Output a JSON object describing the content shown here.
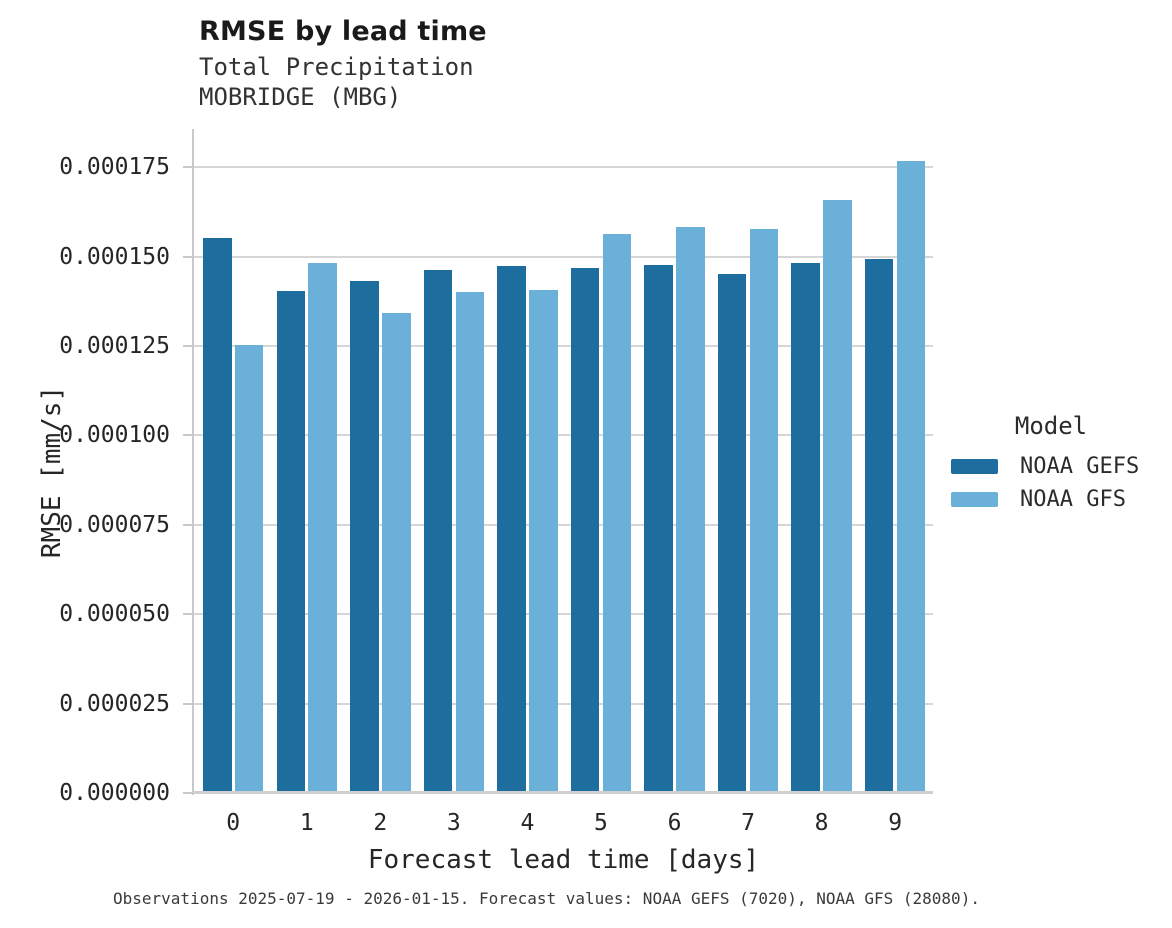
{
  "header": {
    "title": "RMSE by lead time",
    "subtitle_line1": "Total Precipitation",
    "subtitle_line2": "MOBRIDGE (MBG)"
  },
  "footer": {
    "caption": "Observations 2025-07-19 - 2026-01-15. Forecast values: NOAA GEFS (7020), NOAA GFS (28080)."
  },
  "legend": {
    "title": "Model",
    "entries": [
      {
        "label": "NOAA GEFS",
        "color": "#1d6e9e"
      },
      {
        "label": "NOAA GFS",
        "color": "#6ab0d8"
      }
    ]
  },
  "colors": {
    "gefs_bar": "#1d6e9e",
    "gfs_bar": "#6ab0d8",
    "gridline": "#d6d6d6",
    "axis_spine": "#c9c9c9",
    "text": "#262626"
  },
  "chart_data": {
    "type": "bar",
    "title": "RMSE by lead time",
    "subtitle": [
      "Total Precipitation",
      "MOBRIDGE (MBG)"
    ],
    "xlabel": "Forecast lead time [days]",
    "ylabel": "RMSE [mm/s]",
    "categories": [
      "0",
      "1",
      "2",
      "3",
      "4",
      "5",
      "6",
      "7",
      "8",
      "9"
    ],
    "series": [
      {
        "name": "NOAA GEFS",
        "color": "#1d6e9e",
        "values": [
          0.000155,
          0.00014,
          0.000143,
          0.000146,
          0.000147,
          0.0001465,
          0.0001475,
          0.000145,
          0.000148,
          0.000149
        ]
      },
      {
        "name": "NOAA GFS",
        "color": "#6ab0d8",
        "values": [
          0.000125,
          0.000148,
          0.000134,
          0.0001398,
          0.0001403,
          0.000156,
          0.000158,
          0.0001575,
          0.0001655,
          0.0001765
        ]
      }
    ],
    "ylim": [
      0,
      0.0001857
    ],
    "yticks": [
      0,
      2.5e-05,
      5e-05,
      7.5e-05,
      0.0001,
      0.000125,
      0.00015,
      0.000175
    ],
    "ytick_format_decimals": 6,
    "grid": true,
    "legend_title": "Model",
    "legend_position": "right",
    "caption": "Observations 2025-07-19 - 2026-01-15. Forecast values: NOAA GEFS (7020), NOAA GFS (28080)."
  }
}
